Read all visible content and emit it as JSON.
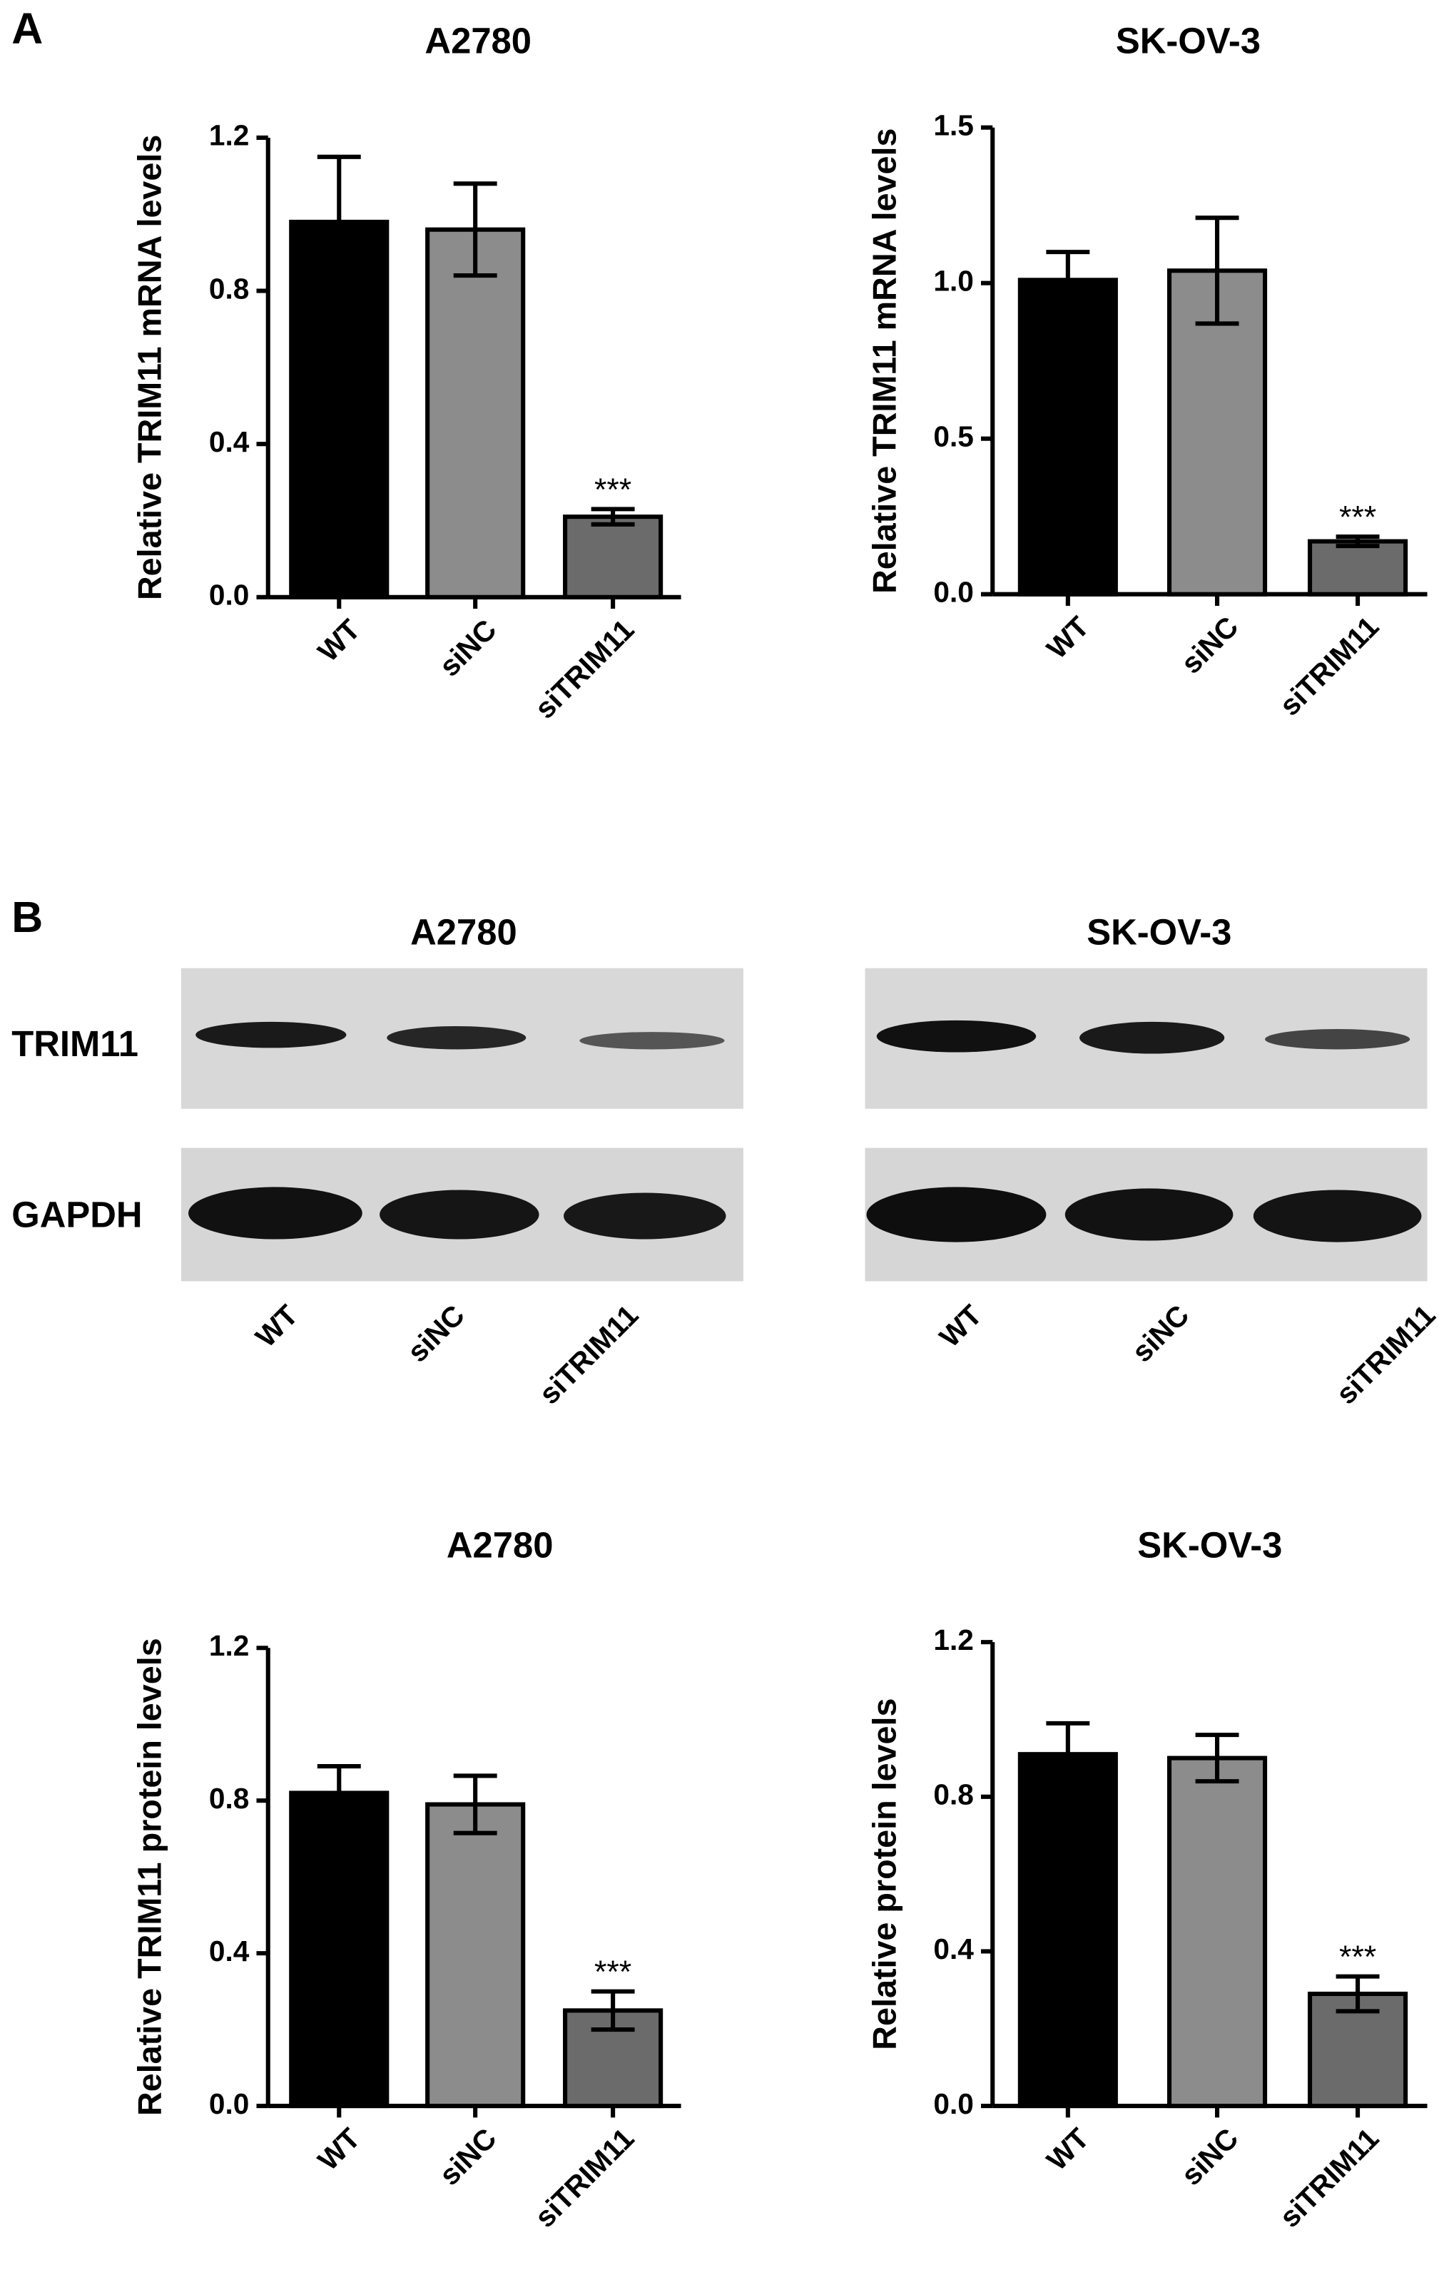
{
  "panel_labels": [
    "A",
    "B"
  ],
  "blots": {
    "titles": [
      "A2780",
      "SK-OV-3"
    ],
    "rows": [
      "TRIM11",
      "GAPDH"
    ],
    "lanes": [
      "WT",
      "siNC",
      "siTRIM11"
    ]
  },
  "chart_data": [
    {
      "type": "bar",
      "title": "A2780",
      "ylabel": "Relative TRIM11 mRNA levels",
      "categories": [
        "WT",
        "siNC",
        "siTRIM11"
      ],
      "values": [
        0.98,
        0.96,
        0.21
      ],
      "errors": [
        0.17,
        0.12,
        0.02
      ],
      "colors": [
        "#000000",
        "#8c8c8c",
        "#6b6b6b"
      ],
      "ylim": [
        0,
        1.2
      ],
      "yticks": [
        {
          "value": 0,
          "label": "0.0"
        },
        0.4,
        0.8,
        1.2
      ],
      "annotations": [
        {
          "text": "***",
          "category": "siTRIM11"
        }
      ]
    },
    {
      "type": "bar",
      "title": "SK-OV-3",
      "ylabel": "Relative TRIM11 mRNA levels",
      "categories": [
        "WT",
        "siNC",
        "siTRIM11"
      ],
      "values": [
        1.01,
        1.04,
        0.17
      ],
      "errors": [
        0.09,
        0.17,
        0.015
      ],
      "colors": [
        "#000000",
        "#8c8c8c",
        "#6b6b6b"
      ],
      "ylim": [
        0,
        1.5
      ],
      "yticks": [
        {
          "value": 0,
          "label": "0.0"
        },
        0.5,
        {
          "value": 1,
          "label": "1.0"
        },
        1.5
      ],
      "annotations": [
        {
          "text": "***",
          "category": "siTRIM11"
        }
      ]
    },
    {
      "type": "bar",
      "title": "A2780",
      "ylabel": "Relative TRIM11 protein levels",
      "categories": [
        "WT",
        "siNC",
        "siTRIM11"
      ],
      "values": [
        0.82,
        0.79,
        0.25
      ],
      "errors": [
        0.07,
        0.075,
        0.05
      ],
      "colors": [
        "#000000",
        "#8c8c8c",
        "#6b6b6b"
      ],
      "ylim": [
        0,
        1.2
      ],
      "yticks": [
        {
          "value": 0,
          "label": "0.0"
        },
        0.4,
        0.8,
        1.2
      ],
      "annotations": [
        {
          "text": "***",
          "category": "siTRIM11"
        }
      ]
    },
    {
      "type": "bar",
      "title": "SK-OV-3",
      "ylabel": "Relative protein levels",
      "categories": [
        "WT",
        "siNC",
        "siTRIM11"
      ],
      "values": [
        0.91,
        0.9,
        0.29
      ],
      "errors": [
        0.08,
        0.06,
        0.045
      ],
      "colors": [
        "#000000",
        "#8c8c8c",
        "#6b6b6b"
      ],
      "ylim": [
        0,
        1.2
      ],
      "yticks": [
        {
          "value": 0,
          "label": "0.0"
        },
        0.4,
        0.8,
        1.2
      ],
      "annotations": [
        {
          "text": "***",
          "category": "siTRIM11"
        }
      ]
    }
  ]
}
